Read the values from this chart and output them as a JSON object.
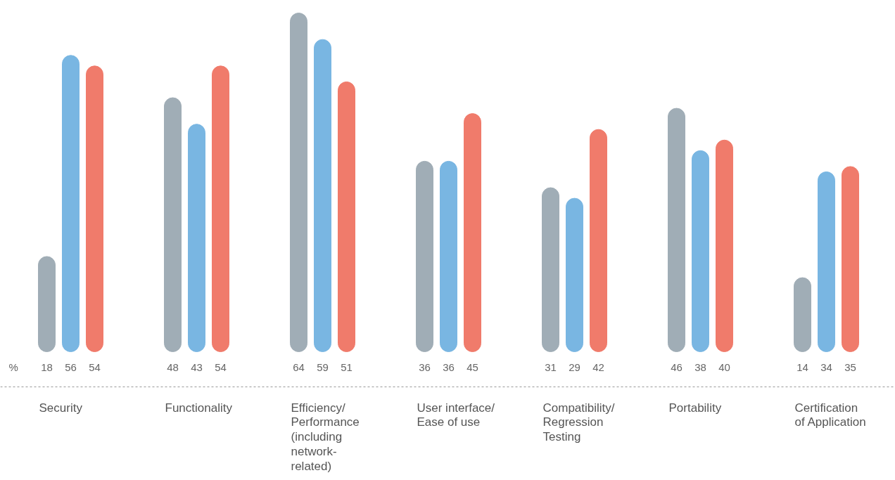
{
  "chart_data": {
    "type": "bar",
    "categories": [
      "Security",
      "Functionality",
      "Efficiency/\nPerformance\n(including\nnetwork-\nrelated)",
      "User interface/\nEase of use",
      "Compatibility/\nRegression\nTesting",
      "Portability",
      "Certification\nof Application"
    ],
    "series": [
      {
        "color": "#a0adb6",
        "values": [
          18,
          48,
          64,
          36,
          31,
          46,
          14
        ],
        "value_labels": [
          "18",
          "48",
          "64",
          "36",
          "31",
          "46",
          "14"
        ]
      },
      {
        "color": "#79b6e2",
        "values": [
          56,
          43,
          59,
          36,
          29,
          38,
          34
        ],
        "value_labels": [
          "56",
          "43",
          "59",
          "36",
          "29",
          "38",
          "34"
        ]
      },
      {
        "color": "#f07b6b",
        "values": [
          54,
          54,
          51,
          45,
          42,
          40,
          35
        ],
        "value_labels": [
          "54",
          "54",
          "51",
          "45",
          "42",
          "40",
          "35"
        ]
      }
    ],
    "grid": false,
    "tick_labels": false,
    "annotations": [
      "%"
    ]
  }
}
